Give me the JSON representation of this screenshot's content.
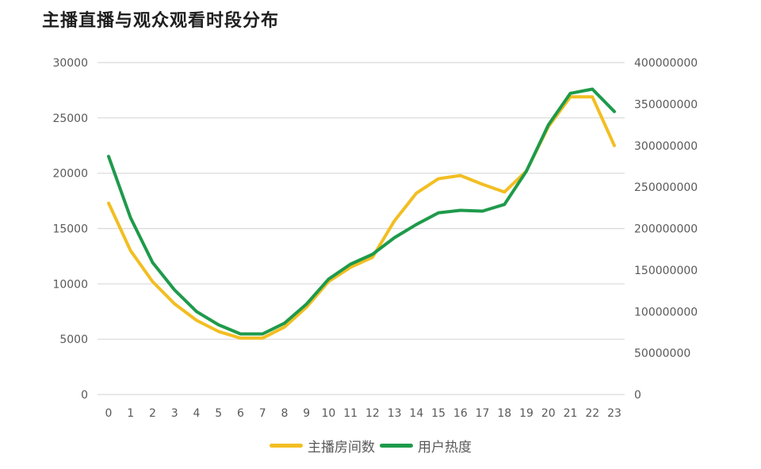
{
  "title": "主播直播与观众观看时段分布",
  "chart_data": {
    "type": "line",
    "title": "主播直播与观众观看时段分布",
    "xlabel": "",
    "ylabel": "",
    "x": [
      0,
      1,
      2,
      3,
      4,
      5,
      6,
      7,
      8,
      9,
      10,
      11,
      12,
      13,
      14,
      15,
      16,
      17,
      18,
      19,
      20,
      21,
      22,
      23
    ],
    "y_left": {
      "ticks": [
        0,
        5000,
        10000,
        15000,
        20000,
        25000,
        30000
      ],
      "range": [
        0,
        30000
      ]
    },
    "y_right": {
      "ticks": [
        0,
        50000000,
        100000000,
        150000000,
        200000000,
        250000000,
        300000000,
        350000000,
        400000000
      ],
      "range": [
        0,
        400000000
      ]
    },
    "grid": true,
    "legend_position": "bottom",
    "series": [
      {
        "name": "主播房间数",
        "axis": "left",
        "color": "#F2BE22",
        "values": [
          17300,
          13000,
          10200,
          8200,
          6700,
          5700,
          5100,
          5100,
          6100,
          7900,
          10200,
          11500,
          12400,
          15700,
          18200,
          19500,
          19800,
          19000,
          18300,
          20200,
          24200,
          26900,
          26900,
          22500
        ]
      },
      {
        "name": "用户热度",
        "axis": "right",
        "color": "#1E9A4B",
        "values": [
          287000000,
          213000000,
          159000000,
          126000000,
          100000000,
          84000000,
          73000000,
          73000000,
          86000000,
          109000000,
          139000000,
          157000000,
          169000000,
          189000000,
          205000000,
          219000000,
          222000000,
          221000000,
          229000000,
          269000000,
          325000000,
          363000000,
          368000000,
          341000000
        ]
      }
    ]
  },
  "axis_labels": {
    "left": [
      "30000",
      "25000",
      "20000",
      "15000",
      "10000",
      "5000",
      "0"
    ],
    "right": [
      "400000000",
      "350000000",
      "300000000",
      "250000000",
      "200000000",
      "150000000",
      "100000000",
      "50000000",
      "0"
    ],
    "x": [
      "0",
      "1",
      "2",
      "3",
      "4",
      "5",
      "6",
      "7",
      "8",
      "9",
      "10",
      "11",
      "12",
      "13",
      "14",
      "15",
      "16",
      "17",
      "18",
      "19",
      "20",
      "21",
      "22",
      "23"
    ]
  },
  "legend": [
    {
      "label": "主播房间数",
      "color": "#F2BE22"
    },
    {
      "label": "用户热度",
      "color": "#1E9A4B"
    }
  ]
}
